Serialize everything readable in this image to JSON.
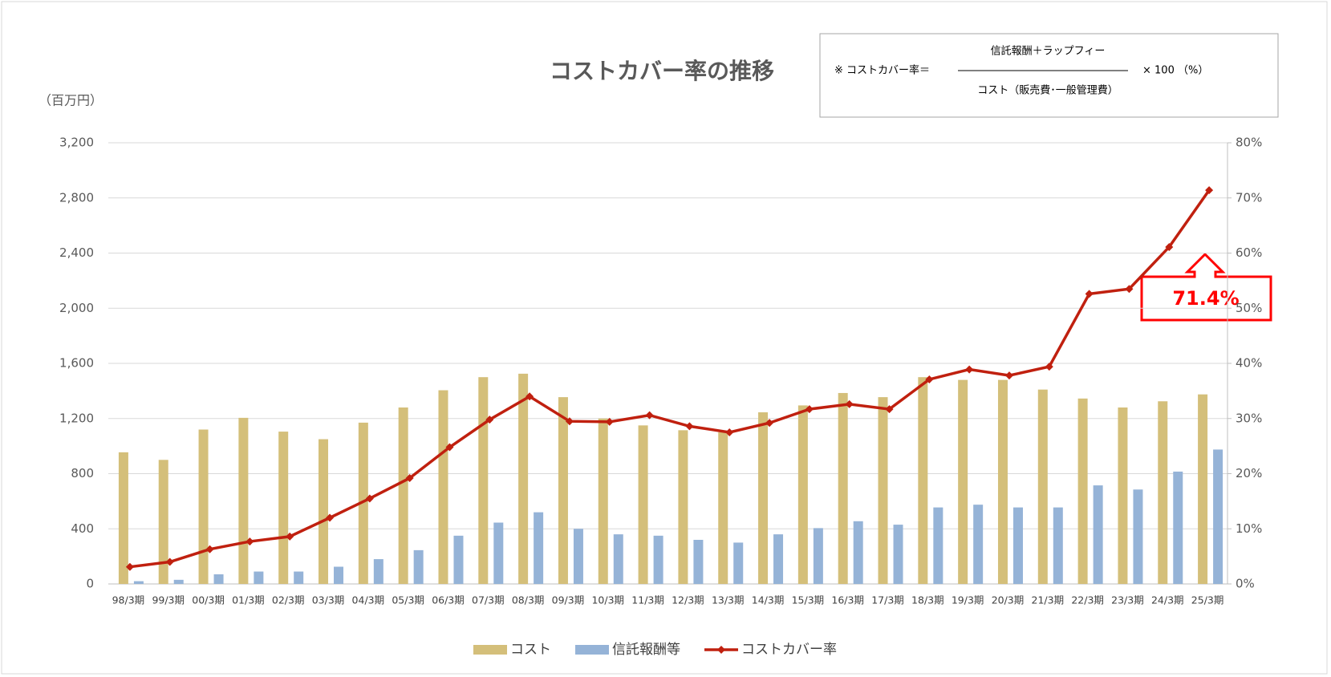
{
  "chart_data": {
    "type": "bar_line",
    "title": "コストカバー率の推移",
    "y_label": "（百万円）",
    "formula": {
      "prefix": "※ コストカバー率＝",
      "numerator": "信託報酬＋ラップフィー",
      "denominator": "コスト（販売費･一般管理費）",
      "suffix": "× 100 （%）"
    },
    "annotation": "71.4%",
    "categories": [
      "98/3期",
      "99/3期",
      "00/3期",
      "01/3期",
      "02/3期",
      "03/3期",
      "04/3期",
      "05/3期",
      "06/3期",
      "07/3期",
      "08/3期",
      "09/3期",
      "10/3期",
      "11/3期",
      "12/3期",
      "13/3期",
      "14/3期",
      "15/3期",
      "16/3期",
      "17/3期",
      "18/3期",
      "19/3期",
      "20/3期",
      "21/3期",
      "22/3期",
      "23/3期",
      "24/3期",
      "25/3期"
    ],
    "series": [
      {
        "name": "コスト",
        "type": "bar",
        "color": "#d4bf7a",
        "values": [
          955,
          900,
          1120,
          1205,
          1105,
          1050,
          1170,
          1280,
          1405,
          1500,
          1525,
          1355,
          1200,
          1150,
          1115,
          1100,
          1245,
          1295,
          1385,
          1355,
          1500,
          1480,
          1480,
          1410,
          1345,
          1280,
          1325,
          1375
        ]
      },
      {
        "name": "信託報酬等",
        "type": "bar",
        "color": "#95b3d7",
        "values": [
          20,
          30,
          70,
          90,
          90,
          125,
          180,
          245,
          350,
          445,
          520,
          400,
          360,
          350,
          320,
          300,
          360,
          405,
          455,
          430,
          555,
          575,
          555,
          555,
          715,
          685,
          815,
          975
        ]
      },
      {
        "name": "コストカバー率",
        "type": "line",
        "axis": "y2",
        "color": "#c0200f",
        "values": [
          3.1,
          4.0,
          6.3,
          7.7,
          8.6,
          12.0,
          15.5,
          19.2,
          24.8,
          29.8,
          34.0,
          29.5,
          29.4,
          30.6,
          28.6,
          27.5,
          29.2,
          31.7,
          32.6,
          31.7,
          37.1,
          38.9,
          37.8,
          39.4,
          52.6,
          53.5,
          61.1,
          71.4
        ]
      }
    ],
    "ylim": [
      0,
      3200
    ],
    "yticks": [
      0,
      400,
      800,
      {
        "value": 1200,
        "label": "1,200"
      },
      {
        "value": 1600,
        "label": "1,600"
      },
      {
        "value": 2000,
        "label": "2,000"
      },
      {
        "value": 2400,
        "label": "2,400"
      },
      {
        "value": 2800,
        "label": "2,800"
      },
      {
        "value": 3200,
        "label": "3,200"
      }
    ],
    "y2lim": [
      0,
      80
    ],
    "y2ticks": [
      {
        "value": 0,
        "label": "0%"
      },
      {
        "value": 10,
        "label": "10%"
      },
      {
        "value": 20,
        "label": "20%"
      },
      {
        "value": 30,
        "label": "30%"
      },
      {
        "value": 40,
        "label": "40%"
      },
      {
        "value": 50,
        "label": "50%"
      },
      {
        "value": 60,
        "label": "60%"
      },
      {
        "value": 70,
        "label": "70%"
      },
      {
        "value": 80,
        "label": "80%"
      }
    ],
    "grid": true,
    "legend": "bottom"
  }
}
